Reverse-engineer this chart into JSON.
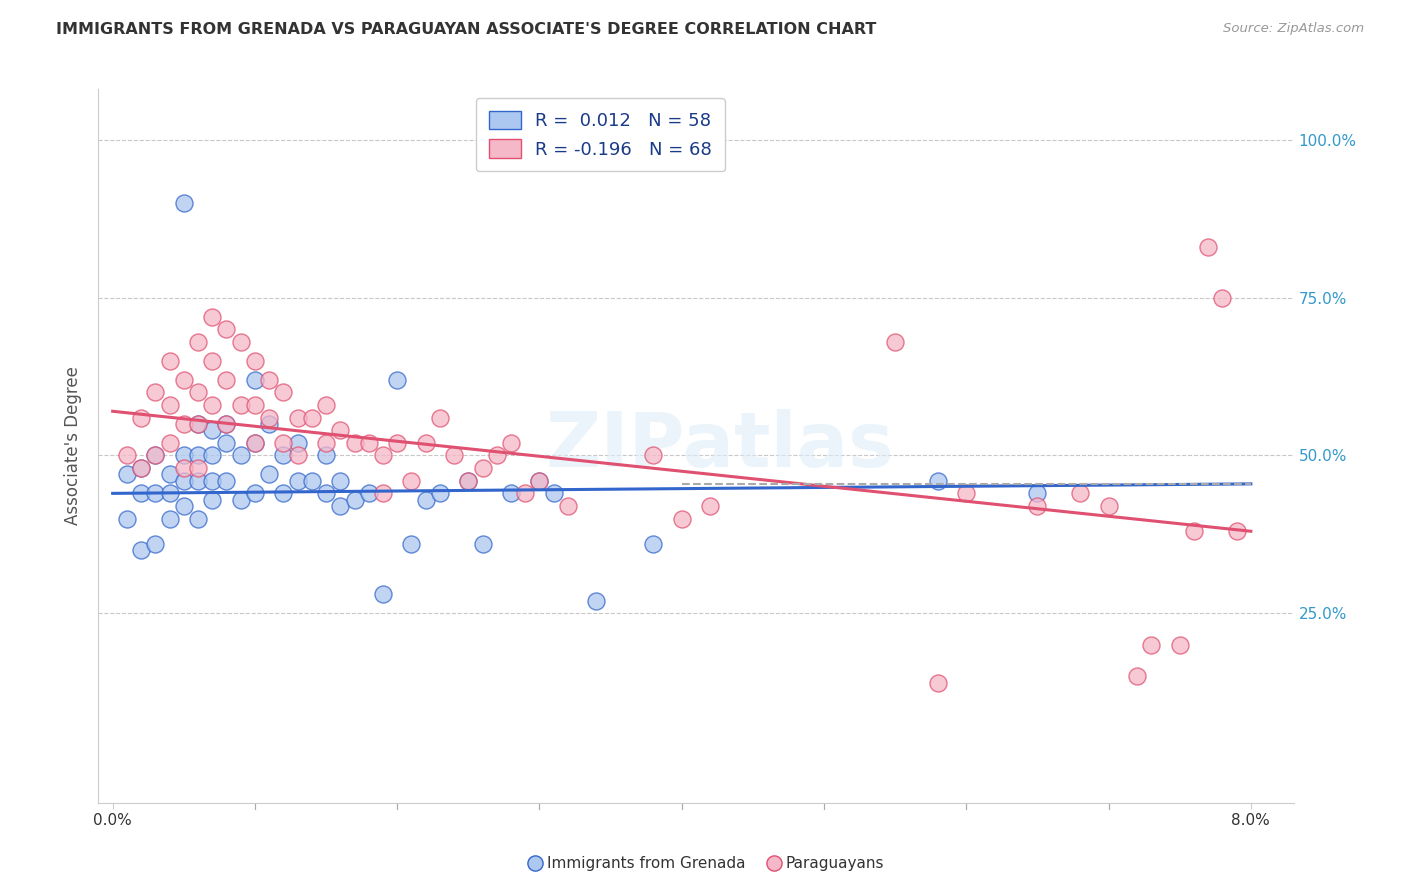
{
  "title": "IMMIGRANTS FROM GRENADA VS PARAGUAYAN ASSOCIATE'S DEGREE CORRELATION CHART",
  "source": "Source: ZipAtlas.com",
  "ylabel": "Associate's Degree",
  "legend1_color": "#adc8f0",
  "legend2_color": "#f5b8c8",
  "line1_color": "#3366cc",
  "line2_color": "#e05070",
  "watermark": "ZIPatlas",
  "bottom_legend1": "Immigrants from Grenada",
  "bottom_legend2": "Paraguayans",
  "xlim": [
    0.0,
    0.08
  ],
  "ylim": [
    0.0,
    1.05
  ],
  "blue_line": [
    0.0,
    0.44,
    0.08,
    0.455
  ],
  "pink_line": [
    0.0,
    0.57,
    0.08,
    0.38
  ],
  "dash_line": [
    0.04,
    0.455,
    0.08,
    0.455
  ],
  "background_color": "#ffffff",
  "scatter1_x": [
    0.001,
    0.001,
    0.002,
    0.002,
    0.002,
    0.003,
    0.003,
    0.003,
    0.004,
    0.004,
    0.004,
    0.005,
    0.005,
    0.005,
    0.005,
    0.006,
    0.006,
    0.006,
    0.006,
    0.007,
    0.007,
    0.007,
    0.007,
    0.008,
    0.008,
    0.008,
    0.009,
    0.009,
    0.01,
    0.01,
    0.01,
    0.011,
    0.011,
    0.012,
    0.012,
    0.013,
    0.013,
    0.014,
    0.015,
    0.015,
    0.016,
    0.016,
    0.017,
    0.018,
    0.019,
    0.02,
    0.021,
    0.022,
    0.023,
    0.025,
    0.026,
    0.028,
    0.03,
    0.031,
    0.034,
    0.038,
    0.058,
    0.065
  ],
  "scatter1_y": [
    0.47,
    0.4,
    0.48,
    0.44,
    0.35,
    0.5,
    0.44,
    0.36,
    0.47,
    0.44,
    0.4,
    0.9,
    0.5,
    0.46,
    0.42,
    0.55,
    0.5,
    0.46,
    0.4,
    0.54,
    0.5,
    0.46,
    0.43,
    0.55,
    0.52,
    0.46,
    0.5,
    0.43,
    0.62,
    0.52,
    0.44,
    0.55,
    0.47,
    0.5,
    0.44,
    0.52,
    0.46,
    0.46,
    0.5,
    0.44,
    0.46,
    0.42,
    0.43,
    0.44,
    0.28,
    0.62,
    0.36,
    0.43,
    0.44,
    0.46,
    0.36,
    0.44,
    0.46,
    0.44,
    0.27,
    0.36,
    0.46,
    0.44
  ],
  "scatter2_x": [
    0.001,
    0.002,
    0.002,
    0.003,
    0.003,
    0.004,
    0.004,
    0.004,
    0.005,
    0.005,
    0.005,
    0.006,
    0.006,
    0.006,
    0.006,
    0.007,
    0.007,
    0.007,
    0.008,
    0.008,
    0.008,
    0.009,
    0.009,
    0.01,
    0.01,
    0.01,
    0.011,
    0.011,
    0.012,
    0.012,
    0.013,
    0.013,
    0.014,
    0.015,
    0.015,
    0.016,
    0.017,
    0.018,
    0.019,
    0.019,
    0.02,
    0.021,
    0.022,
    0.023,
    0.024,
    0.025,
    0.026,
    0.027,
    0.028,
    0.029,
    0.03,
    0.032,
    0.038,
    0.04,
    0.042,
    0.055,
    0.058,
    0.06,
    0.065,
    0.068,
    0.07,
    0.072,
    0.073,
    0.075,
    0.076,
    0.077,
    0.078,
    0.079
  ],
  "scatter2_y": [
    0.5,
    0.56,
    0.48,
    0.6,
    0.5,
    0.65,
    0.58,
    0.52,
    0.62,
    0.55,
    0.48,
    0.68,
    0.6,
    0.55,
    0.48,
    0.72,
    0.65,
    0.58,
    0.7,
    0.62,
    0.55,
    0.68,
    0.58,
    0.65,
    0.58,
    0.52,
    0.62,
    0.56,
    0.6,
    0.52,
    0.56,
    0.5,
    0.56,
    0.58,
    0.52,
    0.54,
    0.52,
    0.52,
    0.5,
    0.44,
    0.52,
    0.46,
    0.52,
    0.56,
    0.5,
    0.46,
    0.48,
    0.5,
    0.52,
    0.44,
    0.46,
    0.42,
    0.5,
    0.4,
    0.42,
    0.68,
    0.14,
    0.44,
    0.42,
    0.44,
    0.42,
    0.15,
    0.2,
    0.2,
    0.38,
    0.83,
    0.75,
    0.38
  ]
}
